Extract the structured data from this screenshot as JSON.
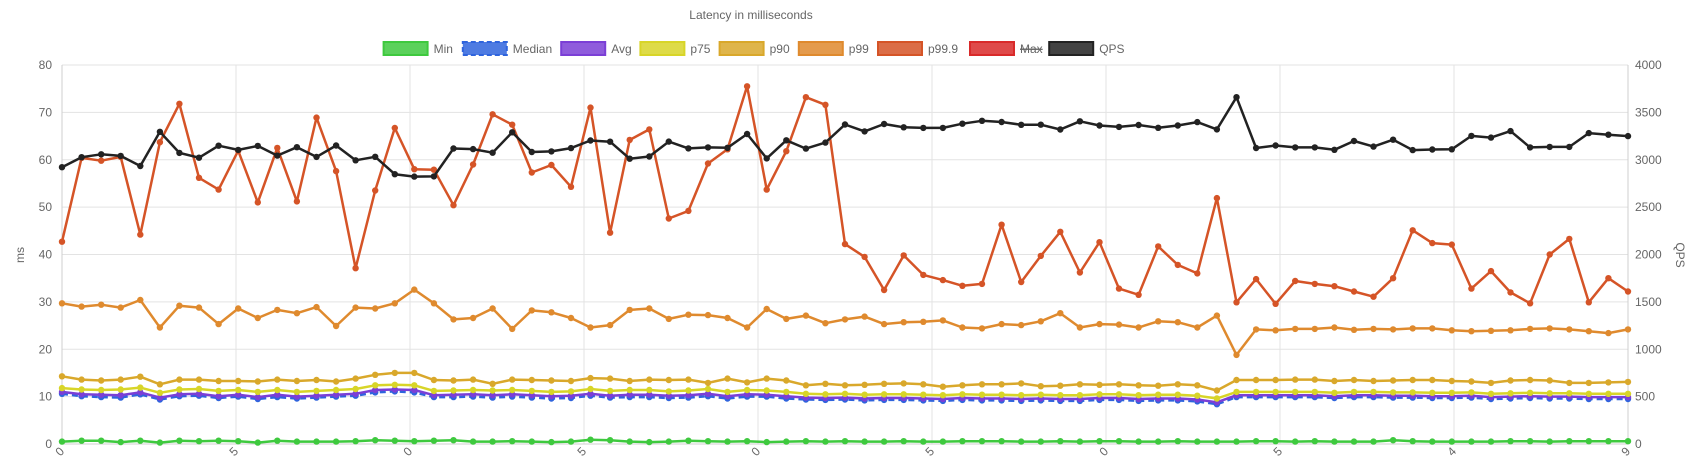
{
  "chart_data": {
    "type": "line",
    "title": "Latency in milliseconds",
    "ylabel": "ms",
    "y2label": "QPS",
    "ylim": [
      0,
      80
    ],
    "y2lim": [
      0,
      4000
    ],
    "yticks": [
      "0",
      "10",
      "20",
      "30",
      "40",
      "50",
      "60",
      "70",
      "80"
    ],
    "y2ticks": [
      "0",
      "500",
      "1000",
      "1500",
      "2000",
      "2500",
      "3000",
      "3500",
      "4000"
    ],
    "xtick_labels": [
      "0",
      "5",
      "0",
      "5",
      "0",
      "5",
      "0",
      "5",
      "4",
      "9"
    ],
    "grid": true,
    "legend_position": "top",
    "n_points": 81,
    "series": [
      {
        "name": "Min",
        "axis": "left",
        "color": "#3ec93e",
        "hidden": false,
        "dashed": false,
        "values": [
          0.5,
          0.7,
          0.7,
          0.4,
          0.7,
          0.3,
          0.7,
          0.6,
          0.7,
          0.6,
          0.3,
          0.7,
          0.5,
          0.5,
          0.5,
          0.6,
          0.8,
          0.7,
          0.6,
          0.7,
          0.8,
          0.5,
          0.5,
          0.6,
          0.5,
          0.4,
          0.5,
          0.9,
          0.8,
          0.5,
          0.4,
          0.5,
          0.7,
          0.6,
          0.5,
          0.6,
          0.4,
          0.5,
          0.6,
          0.5,
          0.6,
          0.5,
          0.5,
          0.6,
          0.5,
          0.5,
          0.6,
          0.6,
          0.6,
          0.5,
          0.5,
          0.6,
          0.5,
          0.6,
          0.6,
          0.5,
          0.5,
          0.6,
          0.5,
          0.5,
          0.5,
          0.6,
          0.6,
          0.5,
          0.6,
          0.5,
          0.5,
          0.5,
          0.8,
          0.6,
          0.5,
          0.5,
          0.5,
          0.5,
          0.6,
          0.6,
          0.5,
          0.6,
          0.6,
          0.6,
          0.6
        ]
      },
      {
        "name": "Median",
        "axis": "left",
        "color": "#2f64dd",
        "hidden": false,
        "dashed": true,
        "values": [
          10.6,
          10.1,
          9.9,
          9.8,
          10.5,
          9.4,
          10.1,
          10.2,
          9.7,
          10.0,
          9.5,
          9.9,
          9.6,
          9.8,
          10.0,
          10.2,
          10.9,
          11.1,
          10.9,
          9.9,
          9.9,
          10.0,
          9.8,
          10.0,
          9.8,
          9.6,
          9.7,
          10.2,
          9.8,
          9.9,
          9.9,
          9.7,
          9.8,
          10.1,
          9.6,
          10.0,
          10.0,
          9.6,
          9.4,
          9.3,
          9.4,
          9.2,
          9.3,
          9.3,
          9.2,
          9.1,
          9.3,
          9.2,
          9.2,
          9.1,
          9.2,
          9.1,
          9.1,
          9.3,
          9.3,
          9.1,
          9.2,
          9.2,
          9.0,
          8.4,
          9.9,
          9.9,
          9.9,
          9.9,
          9.9,
          9.7,
          9.9,
          9.9,
          9.8,
          9.8,
          9.7,
          9.7,
          9.8,
          9.5,
          9.6,
          9.7,
          9.6,
          9.6,
          9.5,
          9.5,
          9.5
        ]
      },
      {
        "name": "Avg",
        "axis": "left",
        "color": "#7b3fd6",
        "hidden": false,
        "dashed": false,
        "values": [
          11.0,
          10.5,
          10.4,
          10.3,
          10.9,
          9.8,
          10.5,
          10.6,
          10.1,
          10.4,
          9.9,
          10.4,
          10.0,
          10.2,
          10.4,
          10.6,
          11.4,
          11.5,
          11.4,
          10.3,
          10.4,
          10.5,
          10.3,
          10.5,
          10.3,
          10.1,
          10.2,
          10.6,
          10.2,
          10.4,
          10.4,
          10.2,
          10.3,
          10.6,
          10.1,
          10.5,
          10.4,
          10.1,
          9.8,
          9.7,
          9.8,
          9.6,
          9.7,
          9.7,
          9.6,
          9.5,
          9.7,
          9.6,
          9.6,
          9.5,
          9.6,
          9.5,
          9.5,
          9.7,
          9.7,
          9.5,
          9.6,
          9.6,
          9.4,
          8.8,
          10.3,
          10.3,
          10.3,
          10.3,
          10.3,
          10.1,
          10.3,
          10.3,
          10.2,
          10.2,
          10.1,
          10.1,
          10.2,
          9.9,
          10.0,
          10.1,
          10.0,
          10.0,
          9.9,
          9.9,
          9.9
        ]
      },
      {
        "name": "p75",
        "axis": "left",
        "color": "#d8d528",
        "hidden": false,
        "dashed": false,
        "values": [
          11.8,
          11.5,
          11.4,
          11.5,
          11.9,
          10.8,
          11.5,
          11.6,
          11.2,
          11.4,
          11.0,
          11.4,
          11.0,
          11.2,
          11.4,
          11.6,
          12.4,
          12.5,
          12.4,
          11.2,
          11.3,
          11.4,
          11.3,
          11.4,
          11.2,
          11.0,
          11.1,
          11.6,
          11.2,
          11.4,
          11.4,
          11.1,
          11.3,
          11.6,
          11.0,
          11.4,
          11.3,
          11.0,
          10.6,
          10.5,
          10.6,
          10.4,
          10.5,
          10.5,
          10.4,
          10.3,
          10.5,
          10.4,
          10.4,
          10.3,
          10.4,
          10.3,
          10.3,
          10.5,
          10.5,
          10.3,
          10.4,
          10.4,
          10.2,
          9.6,
          11.0,
          11.0,
          11.0,
          11.0,
          11.0,
          10.8,
          11.0,
          11.0,
          10.9,
          10.9,
          10.8,
          10.8,
          10.9,
          10.6,
          10.7,
          10.8,
          10.7,
          10.7,
          10.6,
          10.6,
          10.6
        ]
      },
      {
        "name": "p90",
        "axis": "left",
        "color": "#d9a82b",
        "hidden": false,
        "dashed": false,
        "values": [
          14.3,
          13.6,
          13.4,
          13.6,
          14.2,
          12.6,
          13.6,
          13.6,
          13.3,
          13.3,
          13.2,
          13.6,
          13.3,
          13.5,
          13.2,
          13.8,
          14.6,
          15.0,
          15.0,
          13.5,
          13.4,
          13.6,
          12.7,
          13.6,
          13.5,
          13.4,
          13.3,
          13.9,
          13.8,
          13.3,
          13.6,
          13.5,
          13.6,
          12.9,
          13.8,
          13.0,
          13.8,
          13.4,
          12.4,
          12.7,
          12.4,
          12.5,
          12.7,
          12.8,
          12.6,
          12.1,
          12.4,
          12.6,
          12.6,
          12.8,
          12.2,
          12.3,
          12.6,
          12.5,
          12.6,
          12.4,
          12.3,
          12.6,
          12.4,
          11.3,
          13.5,
          13.5,
          13.5,
          13.6,
          13.6,
          13.3,
          13.5,
          13.3,
          13.4,
          13.5,
          13.5,
          13.3,
          13.2,
          12.9,
          13.4,
          13.5,
          13.4,
          12.9,
          12.9,
          13.0,
          13.1
        ]
      },
      {
        "name": "p99",
        "axis": "left",
        "color": "#df8a2e",
        "hidden": false,
        "dashed": false,
        "values": [
          29.7,
          29.0,
          29.4,
          28.8,
          30.4,
          24.6,
          29.2,
          28.8,
          25.3,
          28.6,
          26.6,
          28.3,
          27.6,
          28.9,
          24.9,
          28.8,
          28.6,
          29.7,
          32.6,
          29.7,
          26.3,
          26.6,
          28.6,
          24.3,
          28.2,
          27.8,
          26.6,
          24.6,
          25.1,
          28.3,
          28.6,
          26.4,
          27.3,
          27.2,
          26.6,
          24.6,
          28.5,
          26.4,
          27.1,
          25.5,
          26.3,
          26.9,
          25.3,
          25.7,
          25.8,
          26.1,
          24.6,
          24.4,
          25.3,
          25.1,
          25.9,
          27.6,
          24.6,
          25.3,
          25.2,
          24.6,
          25.9,
          25.7,
          24.6,
          27.1,
          18.8,
          24.2,
          24.0,
          24.3,
          24.3,
          24.6,
          24.1,
          24.3,
          24.2,
          24.4,
          24.4,
          24.0,
          23.8,
          23.9,
          24.0,
          24.3,
          24.4,
          24.2,
          23.8,
          23.4,
          24.2
        ]
      },
      {
        "name": "p99.9",
        "axis": "left",
        "color": "#d55427",
        "hidden": false,
        "dashed": false,
        "values": [
          42.7,
          60.4,
          59.8,
          60.6,
          44.2,
          63.7,
          71.8,
          56.2,
          53.7,
          61.9,
          51.0,
          62.5,
          51.2,
          68.9,
          57.6,
          37.1,
          53.5,
          66.7,
          58.0,
          57.9,
          50.4,
          59.0,
          69.6,
          67.4,
          57.3,
          58.9,
          54.3,
          71.0,
          44.6,
          64.2,
          66.4,
          47.6,
          49.2,
          59.2,
          62.2,
          75.5,
          53.7,
          61.8,
          73.2,
          71.6,
          42.2,
          39.5,
          32.5,
          39.8,
          35.7,
          34.6,
          33.4,
          33.8,
          46.3,
          34.2,
          39.7,
          44.8,
          36.2,
          42.6,
          32.8,
          31.5,
          41.7,
          37.8,
          36.0,
          51.9,
          29.9,
          34.8,
          29.6,
          34.4,
          33.8,
          33.3,
          32.2,
          31.1,
          35.0,
          45.1,
          42.4,
          42.1,
          32.8,
          36.5,
          32.0,
          29.7,
          40.0,
          43.3,
          29.9,
          35.0,
          32.2
        ]
      },
      {
        "name": "Max",
        "axis": "left",
        "color": "#d92a2a",
        "hidden": true,
        "dashed": false,
        "values": []
      },
      {
        "name": "QPS",
        "axis": "right",
        "color": "#222222",
        "hidden": false,
        "dashed": false,
        "values": [
          2921,
          3027,
          3058,
          3041,
          2934,
          3295,
          3072,
          3022,
          3148,
          3104,
          3146,
          3044,
          3132,
          3030,
          3150,
          2994,
          3031,
          2848,
          2822,
          2824,
          3119,
          3112,
          3074,
          3290,
          3082,
          3088,
          3123,
          3203,
          3191,
          3011,
          3034,
          3192,
          3120,
          3130,
          3126,
          3272,
          3014,
          3205,
          3118,
          3181,
          3372,
          3299,
          3377,
          3342,
          3336,
          3336,
          3381,
          3411,
          3398,
          3369,
          3370,
          3319,
          3406,
          3361,
          3347,
          3367,
          3337,
          3362,
          3397,
          3320,
          3660,
          3124,
          3150,
          3130,
          3130,
          3105,
          3198,
          3139,
          3212,
          3102,
          3108,
          3110,
          3252,
          3234,
          3302,
          3130,
          3136,
          3136,
          3281,
          3264,
          3250
        ]
      }
    ]
  }
}
